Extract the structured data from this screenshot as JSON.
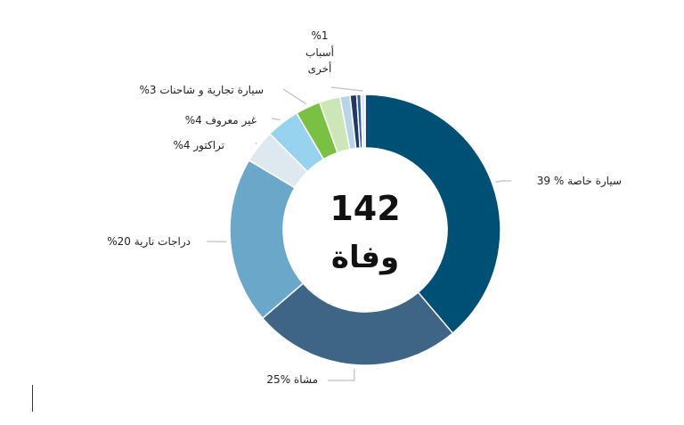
{
  "chart_data": {
    "type": "pie",
    "donut": true,
    "center_text": {
      "number": "142",
      "word": "وفاة"
    },
    "slices": [
      {
        "label": "39 % سيارة خاصة",
        "value": 39,
        "color": "#004f74"
      },
      {
        "label": "25% مشاة",
        "value": 25,
        "color": "#3e6585"
      },
      {
        "label": "%20 دراجات نارية",
        "value": 20,
        "color": "#6aa7c8"
      },
      {
        "label": "%4 تراكتور",
        "value": 4,
        "color": "#dde8ef"
      },
      {
        "label": "%4 غير معروف",
        "value": 4,
        "color": "#97d3ee"
      },
      {
        "label": "%3 سيارة تجارية و شاحنات",
        "value": 3,
        "color": "#7ac143"
      },
      {
        "label": "",
        "value": 2.5,
        "color": "#cce6b7"
      },
      {
        "label": "",
        "value": 1.2,
        "color": "#b9d4e6"
      },
      {
        "label": "",
        "value": 0.8,
        "color": "#203864"
      },
      {
        "label": "",
        "value": 0.5,
        "color": "#2f5d9c"
      },
      {
        "label": "%1 أسباب أخرى",
        "value": 0.5,
        "color": "#e3e9ef"
      }
    ]
  }
}
